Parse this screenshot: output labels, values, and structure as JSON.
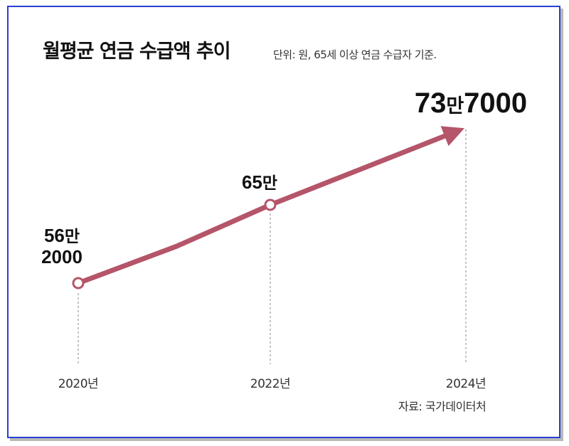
{
  "chart_data": {
    "type": "line",
    "title": "월평균 연금 수급액 추이",
    "subtitle": "단위: 원, 65세 이상 연금 수급자 기준.",
    "source": "자료: 국가데이터처",
    "categories": [
      "2020년",
      "2022년",
      "2024년"
    ],
    "values": [
      562000,
      650000,
      737000
    ],
    "point_labels": [
      {
        "number": "56",
        "unit": "만",
        "line2": "2000"
      },
      {
        "number": "65",
        "unit": "만",
        "line2": ""
      },
      {
        "number": "73",
        "unit": "만",
        "rest": "7000"
      }
    ],
    "line_color": "#b5556a",
    "grid": false,
    "legend": "none"
  }
}
